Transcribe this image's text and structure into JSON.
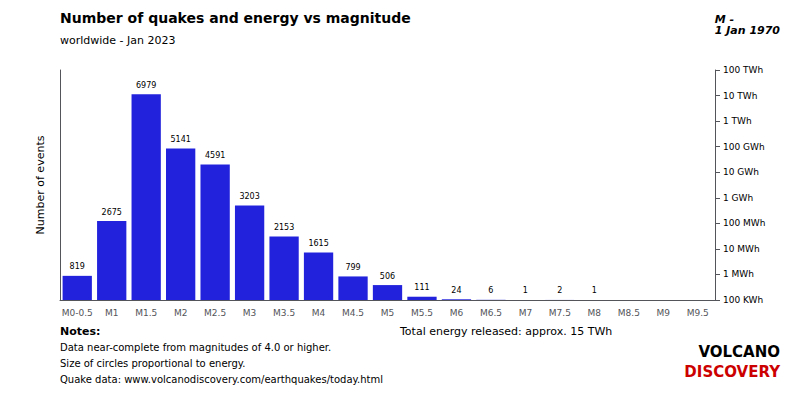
{
  "chart_data": {
    "type": "bar",
    "title": "Number of quakes and energy vs magnitude",
    "subtitle": "worldwide - Jan 2023",
    "ylabel": "Number of events",
    "categories": [
      "M0-0.5",
      "M1",
      "M1.5",
      "M2",
      "M2.5",
      "M3",
      "M3.5",
      "M4",
      "M4.5",
      "M5",
      "M5.5",
      "M6",
      "M6.5",
      "M7",
      "M7.5",
      "M8",
      "M8.5",
      "M9",
      "M9.5"
    ],
    "values": [
      819,
      2675,
      6979,
      5141,
      4591,
      3203,
      2153,
      1615,
      799,
      506,
      111,
      24,
      6,
      1,
      2,
      1,
      0,
      0,
      0
    ],
    "value_labels": [
      "819",
      "2675",
      "6979",
      "5141",
      "4591",
      "3203",
      "2153",
      "1615",
      "799",
      "506",
      "111",
      "24",
      "6",
      "1",
      "2",
      "1",
      null,
      null,
      null
    ],
    "data_labels": true,
    "color": "#2222dd",
    "ylim": [
      0,
      7800
    ],
    "yticks": [],
    "tick_labels": "x",
    "grid": false,
    "log": "y2",
    "y2lim": [
      100000,
      100000000000000
    ],
    "y2ticks": [
      {
        "value": 100000,
        "label": "100 KWh"
      },
      {
        "value": 1000000,
        "label": "1 MWh"
      },
      {
        "value": 10000000,
        "label": "10 MWh"
      },
      {
        "value": 100000000,
        "label": "100 MWh"
      },
      {
        "value": 1000000000,
        "label": "1 GWh"
      },
      {
        "value": 10000000000,
        "label": "10 GWh"
      },
      {
        "value": 100000000000,
        "label": "100 GWh"
      },
      {
        "value": 1000000000000,
        "label": "1 TWh"
      },
      {
        "value": 10000000000000,
        "label": "10 TWh"
      },
      {
        "value": 100000000000000,
        "label": "100 TWh"
      }
    ],
    "notes_title": "Notes:",
    "notes": [
      "Data near-complete from magnitudes of 4.0 or higher.",
      "Size of circles proportional to energy.",
      "Quake data: www.volcanodiscovery.com/earthquakes/today.html"
    ],
    "total_energy_note": "Total energy released: approx. 15 TWh",
    "annotations": [
      {
        "text": "M -\n1 Jan 1970"
      },
      {
        "text": "VOLCANO",
        "color": "#000000"
      },
      {
        "text": "DISCOVERY",
        "color": "#cc0000"
      }
    ]
  }
}
